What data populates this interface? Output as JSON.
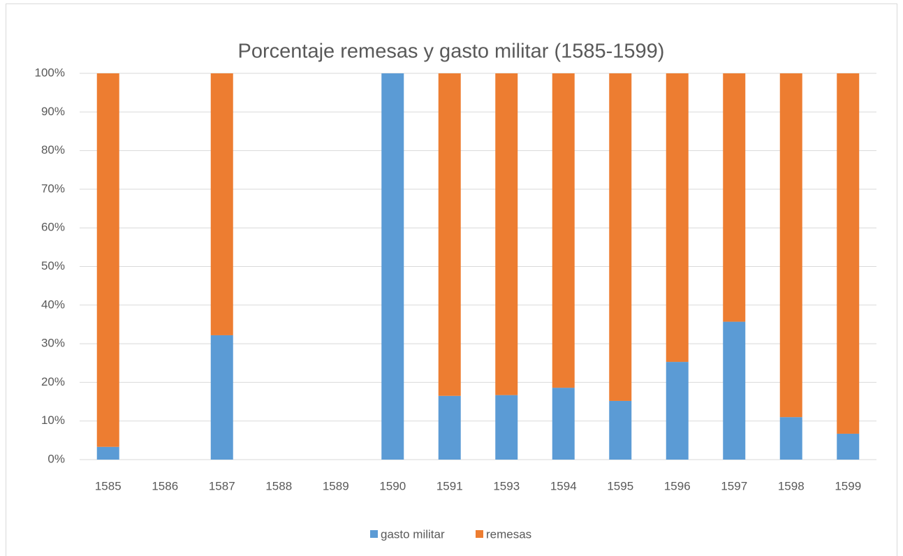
{
  "chart_data": {
    "type": "stacked_bar",
    "title": "Porcentaje remesas y gasto militar (1585-1599)",
    "categories": [
      "1585",
      "1586",
      "1587",
      "1588",
      "1589",
      "1590",
      "1591",
      "1593",
      "1594",
      "1595",
      "1596",
      "1597",
      "1598",
      "1599"
    ],
    "series": [
      {
        "name": "gasto militar",
        "color": "#5b9bd5",
        "values": [
          3.3,
          null,
          32.2,
          null,
          null,
          100,
          16.5,
          16.7,
          18.6,
          15.2,
          25.3,
          35.7,
          11.0,
          6.7
        ]
      },
      {
        "name": "remesas",
        "color": "#ed7d31",
        "values": [
          96.7,
          null,
          67.8,
          null,
          null,
          0,
          83.5,
          83.3,
          81.4,
          84.8,
          74.7,
          64.3,
          89.0,
          93.3
        ]
      }
    ],
    "ylim": [
      0,
      100
    ],
    "yticks": [
      {
        "value": 0,
        "label": "0%"
      },
      {
        "value": 10,
        "label": "10%"
      },
      {
        "value": 20,
        "label": "20%"
      },
      {
        "value": 30,
        "label": "30%"
      },
      {
        "value": 40,
        "label": "40%"
      },
      {
        "value": 50,
        "label": "50%"
      },
      {
        "value": 60,
        "label": "60%"
      },
      {
        "value": 70,
        "label": "70%"
      },
      {
        "value": 80,
        "label": "80%"
      },
      {
        "value": 90,
        "label": "90%"
      },
      {
        "value": 100,
        "label": "100%"
      }
    ],
    "grid": true,
    "legend": "bottom"
  }
}
